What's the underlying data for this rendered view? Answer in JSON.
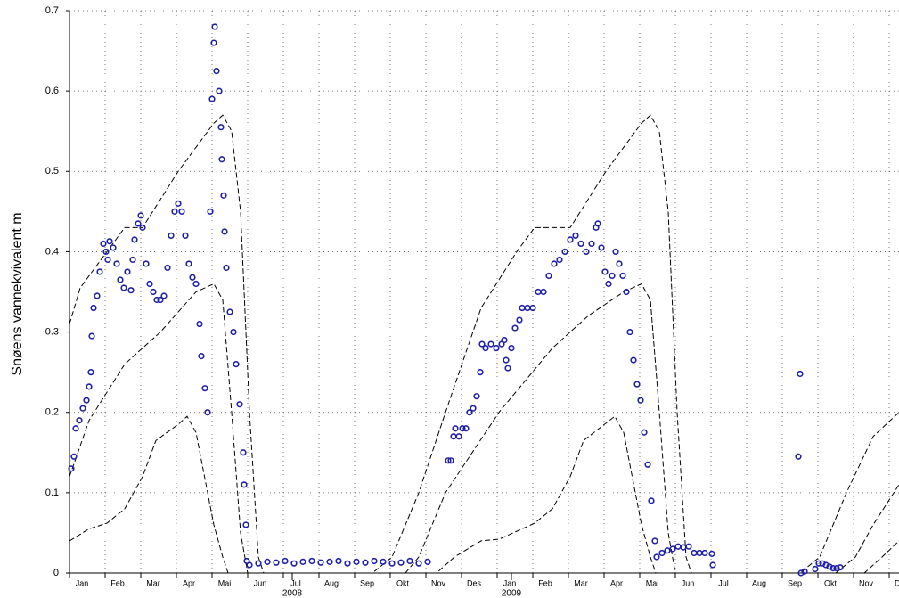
{
  "chart_data": {
    "type": "scatter",
    "y_label": "Snøens vannekvivalent m",
    "ylim": [
      0,
      0.7
    ],
    "yticks": [
      0,
      0.1,
      0.2,
      0.3,
      0.4,
      0.5,
      0.6,
      0.7
    ],
    "xlim": [
      0,
      23.275
    ],
    "xticks": [
      {
        "value": 0,
        "label": "Jan"
      },
      {
        "value": 1,
        "label": "Feb"
      },
      {
        "value": 2,
        "label": "Mar"
      },
      {
        "value": 3,
        "label": "Apr"
      },
      {
        "value": 4,
        "label": "Mai"
      },
      {
        "value": 5,
        "label": "Jun"
      },
      {
        "value": 6,
        "label": "Jul"
      },
      {
        "value": 7,
        "label": "Aug"
      },
      {
        "value": 8,
        "label": "Sep"
      },
      {
        "value": 9,
        "label": "Okt"
      },
      {
        "value": 10,
        "label": "Nov"
      },
      {
        "value": 11,
        "label": "Des"
      },
      {
        "value": 12,
        "label": "Jan"
      },
      {
        "value": 13,
        "label": "Feb"
      },
      {
        "value": 14,
        "label": "Mar"
      },
      {
        "value": 15,
        "label": "Apr"
      },
      {
        "value": 16,
        "label": "Mai"
      },
      {
        "value": 17,
        "label": "Jun"
      },
      {
        "value": 18,
        "label": "Jul"
      },
      {
        "value": 19,
        "label": "Aug"
      },
      {
        "value": 20,
        "label": "Sep"
      },
      {
        "value": 21,
        "label": "Okt"
      },
      {
        "value": 22,
        "label": "Nov"
      },
      {
        "value": 23,
        "label": "Des"
      }
    ],
    "year_ticks": [
      {
        "value": 6.25,
        "label": "2008"
      },
      {
        "value": 12.4,
        "label": "2009"
      }
    ],
    "grid": true,
    "series": [
      {
        "type": "scatter",
        "color": "#1f1fa8",
        "x": [
          0.05,
          0.125,
          0.175,
          0.275,
          0.375,
          0.475,
          0.55,
          0.6,
          0.625,
          0.675,
          0.775,
          0.85,
          0.95,
          1.025,
          1.075,
          1.125,
          1.225,
          1.325,
          1.425,
          1.525,
          1.625,
          1.725,
          1.775,
          1.825,
          1.925,
          2.0,
          2.05,
          2.15,
          2.25,
          2.35,
          2.45,
          2.55,
          2.65,
          2.75,
          2.85,
          2.95,
          3.05,
          3.15,
          3.25,
          3.35,
          3.45,
          3.55,
          3.65,
          3.7,
          3.8,
          3.875,
          3.95,
          4.0,
          4.05,
          4.075,
          4.125,
          4.2,
          4.25,
          4.275,
          4.325,
          4.35,
          4.4,
          4.5,
          4.6,
          4.675,
          4.775,
          4.875,
          4.9,
          4.95,
          4.975,
          5.05,
          5.3,
          5.55,
          5.8,
          6.05,
          6.3,
          6.55,
          6.8,
          7.05,
          7.3,
          7.55,
          7.8,
          8.05,
          8.3,
          8.55,
          8.8,
          9.05,
          9.3,
          9.55,
          9.8,
          10.05,
          10.625,
          10.7,
          10.775,
          10.825,
          10.925,
          11.025,
          11.125,
          11.225,
          11.325,
          11.425,
          11.525,
          11.575,
          11.675,
          11.825,
          11.975,
          12.125,
          12.2,
          12.25,
          12.3,
          12.4,
          12.5,
          12.625,
          12.7,
          12.85,
          13.0,
          13.15,
          13.3,
          13.45,
          13.6,
          13.75,
          13.9,
          14.05,
          14.2,
          14.35,
          14.5,
          14.65,
          14.775,
          14.825,
          14.925,
          15.025,
          15.125,
          15.225,
          15.325,
          15.425,
          15.525,
          15.625,
          15.725,
          15.825,
          15.925,
          16.025,
          16.125,
          16.225,
          16.325,
          16.425,
          16.475,
          16.625,
          16.775,
          16.925,
          17.075,
          17.225,
          17.375,
          17.525,
          17.675,
          17.825,
          18.025,
          18.05,
          20.45,
          20.5,
          20.525,
          20.625,
          20.925,
          21.025,
          21.125,
          21.225,
          21.325,
          21.425,
          21.525,
          21.625
        ],
        "values": [
          0.13,
          0.145,
          0.18,
          0.19,
          0.205,
          0.215,
          0.232,
          0.25,
          0.295,
          0.33,
          0.345,
          0.375,
          0.41,
          0.4,
          0.39,
          0.413,
          0.405,
          0.385,
          0.365,
          0.355,
          0.375,
          0.352,
          0.39,
          0.415,
          0.435,
          0.445,
          0.43,
          0.385,
          0.36,
          0.35,
          0.34,
          0.34,
          0.345,
          0.38,
          0.42,
          0.45,
          0.46,
          0.45,
          0.42,
          0.385,
          0.368,
          0.36,
          0.31,
          0.27,
          0.23,
          0.2,
          0.45,
          0.59,
          0.66,
          0.68,
          0.625,
          0.6,
          0.555,
          0.515,
          0.47,
          0.425,
          0.38,
          0.325,
          0.3,
          0.26,
          0.21,
          0.15,
          0.11,
          0.06,
          0.015,
          0.01,
          0.012,
          0.014,
          0.013,
          0.015,
          0.012,
          0.014,
          0.015,
          0.013,
          0.014,
          0.015,
          0.012,
          0.014,
          0.013,
          0.015,
          0.014,
          0.012,
          0.013,
          0.015,
          0.012,
          0.014,
          0.14,
          0.14,
          0.17,
          0.18,
          0.17,
          0.18,
          0.18,
          0.2,
          0.205,
          0.22,
          0.25,
          0.285,
          0.28,
          0.285,
          0.28,
          0.285,
          0.29,
          0.265,
          0.255,
          0.28,
          0.305,
          0.315,
          0.33,
          0.33,
          0.33,
          0.35,
          0.35,
          0.37,
          0.385,
          0.39,
          0.4,
          0.415,
          0.42,
          0.41,
          0.4,
          0.41,
          0.43,
          0.435,
          0.405,
          0.375,
          0.36,
          0.37,
          0.4,
          0.385,
          0.37,
          0.35,
          0.3,
          0.265,
          0.235,
          0.215,
          0.175,
          0.135,
          0.09,
          0.04,
          0.02,
          0.025,
          0.028,
          0.03,
          0.033,
          0.032,
          0.033,
          0.025,
          0.025,
          0.025,
          0.024,
          0.01,
          0.145,
          0.248,
          0.0,
          0.002,
          0.005,
          0.012,
          0.012,
          0.01,
          0.008,
          0.006,
          0.006,
          0.007
        ]
      },
      {
        "type": "line",
        "style": "dashed",
        "color": "#000000",
        "x": [
          0,
          0.3,
          1.05,
          1.55,
          2.05,
          3.05,
          4.05,
          4.3,
          4.55,
          4.8,
          5.05,
          5.3,
          5.45,
          8.5,
          9.05,
          9.8,
          10.55,
          11.55,
          12.55,
          13.05,
          14.05,
          15.05,
          16.05,
          16.3,
          16.55,
          16.8,
          17.05,
          17.3,
          17.45,
          20.5,
          21.05,
          21.8,
          22.55,
          23.275
        ],
        "values": [
          0.31,
          0.355,
          0.4,
          0.43,
          0.43,
          0.5,
          0.56,
          0.57,
          0.55,
          0.45,
          0.2,
          0.02,
          0,
          0,
          0.02,
          0.1,
          0.2,
          0.33,
          0.4,
          0.43,
          0.43,
          0.5,
          0.56,
          0.57,
          0.55,
          0.45,
          0.2,
          0.02,
          0,
          0,
          0.02,
          0.1,
          0.17,
          0.2
        ]
      },
      {
        "type": "line",
        "style": "dashed",
        "color": "#000000",
        "x": [
          0,
          0.55,
          1.55,
          2.55,
          3.55,
          4.05,
          4.3,
          4.55,
          4.8,
          5.0,
          9.425,
          9.8,
          10.55,
          11.3,
          12.05,
          13.55,
          14.55,
          15.55,
          16.05,
          16.3,
          16.55,
          16.8,
          17.0,
          21.5,
          22.05,
          22.55,
          23.275
        ],
        "values": [
          0.12,
          0.19,
          0.26,
          0.3,
          0.35,
          0.36,
          0.34,
          0.2,
          0.05,
          0,
          0,
          0.02,
          0.1,
          0.15,
          0.2,
          0.28,
          0.32,
          0.35,
          0.36,
          0.34,
          0.2,
          0.05,
          0,
          0,
          0.02,
          0.06,
          0.11
        ]
      },
      {
        "type": "line",
        "style": "dashed",
        "color": "#000000",
        "x": [
          0,
          0.55,
          1.05,
          1.55,
          2.05,
          2.425,
          3.05,
          3.3,
          3.55,
          4.05,
          4.3,
          4.45,
          10.3,
          10.8,
          11.55,
          12.05,
          13.05,
          13.55,
          14.05,
          14.425,
          15.3,
          15.55,
          16.05,
          16.3,
          16.45,
          22.3,
          22.8,
          23.275
        ],
        "values": [
          0.04,
          0.055,
          0.062,
          0.08,
          0.12,
          0.165,
          0.185,
          0.195,
          0.175,
          0.06,
          0.02,
          0,
          0,
          0.02,
          0.04,
          0.042,
          0.062,
          0.08,
          0.12,
          0.165,
          0.195,
          0.175,
          0.06,
          0.02,
          0,
          0,
          0.02,
          0.04
        ]
      }
    ]
  }
}
